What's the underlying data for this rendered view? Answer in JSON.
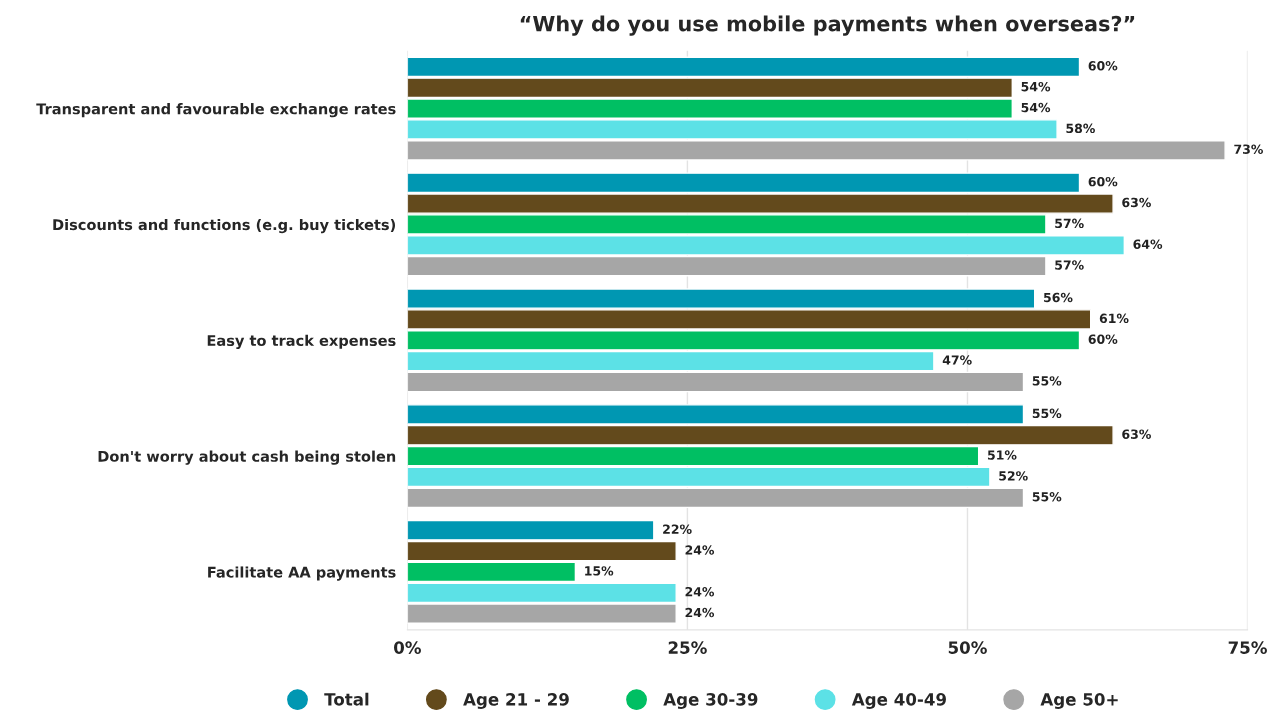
{
  "chart_data": {
    "type": "bar",
    "orientation": "horizontal",
    "title": "“Why do you use mobile payments when overseas?”",
    "categories": [
      "Transparent and favourable exchange rates",
      "Discounts and functions (e.g. buy tickets)",
      "Easy to track expenses",
      "Don't worry about cash being stolen",
      "Facilitate AA payments"
    ],
    "series": [
      {
        "name": "Total",
        "color": "#0097b2",
        "values": [
          60,
          60,
          56,
          55,
          22
        ],
        "value_labels": [
          "60%",
          "60%",
          "56%",
          "55%",
          "22%"
        ]
      },
      {
        "name": "Age 21 - 29",
        "color": "#634a1c",
        "values": [
          54,
          63,
          61,
          63,
          24
        ],
        "value_labels": [
          "54%",
          "63%",
          "61%",
          "63%",
          "24%"
        ]
      },
      {
        "name": "Age 30-39",
        "color": "#00bf63",
        "values": [
          54,
          57,
          60,
          51,
          15
        ],
        "value_labels": [
          "54%",
          "57%",
          "60%",
          "51%",
          "15%"
        ]
      },
      {
        "name": "Age 40-49",
        "color": "#5ce1e6",
        "values": [
          58,
          64,
          47,
          52,
          24
        ],
        "value_labels": [
          "58%",
          "64%",
          "47%",
          "52%",
          "24%"
        ]
      },
      {
        "name": "Age 50+",
        "color": "#a6a6a6",
        "values": [
          73,
          57,
          55,
          55,
          24
        ],
        "value_labels": [
          "73%",
          "57%",
          "55%",
          "55%",
          "24%"
        ]
      }
    ],
    "xlim": [
      0,
      75
    ],
    "xticks": [
      {
        "value": 0,
        "label": "0%"
      },
      {
        "value": 25,
        "label": "25%"
      },
      {
        "value": 50,
        "label": "50%"
      },
      {
        "value": 75,
        "label": "75%"
      }
    ],
    "grid": "x",
    "legend": "bottom"
  }
}
